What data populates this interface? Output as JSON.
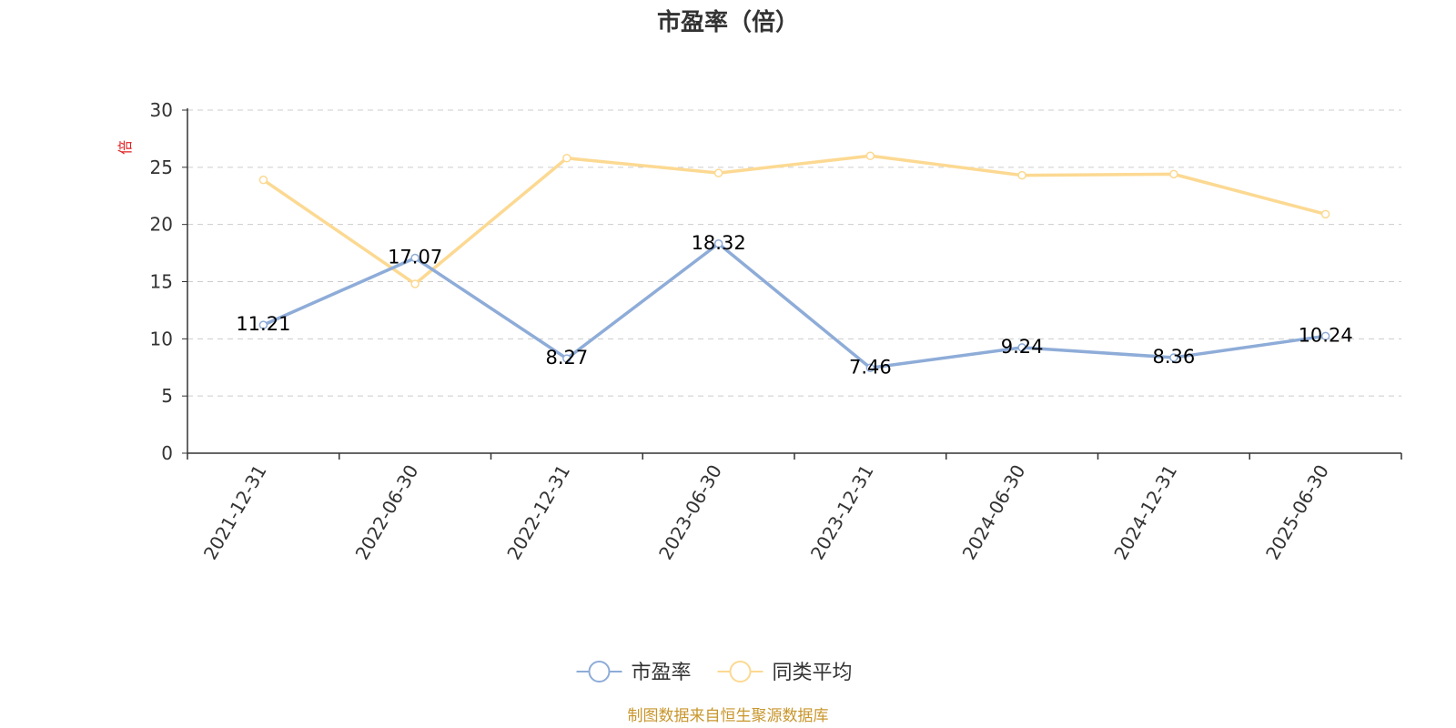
{
  "chart_data": {
    "type": "line",
    "title": "市盈率（倍）",
    "ylabel": "倍",
    "xlabel": "",
    "categories": [
      "2021-12-31",
      "2022-06-30",
      "2022-12-31",
      "2023-06-30",
      "2023-12-31",
      "2024-06-30",
      "2024-12-31",
      "2025-06-30"
    ],
    "y_ticks": [
      "0",
      "5",
      "10",
      "15",
      "20",
      "25",
      "30"
    ],
    "ylim": [
      0,
      30
    ],
    "grid": true,
    "series": [
      {
        "name": "市盈率",
        "values": [
          11.21,
          17.07,
          8.27,
          18.32,
          7.46,
          9.24,
          8.36,
          10.24
        ],
        "labels": [
          "11.21",
          "17.07",
          "8.27",
          "18.32",
          "7.46",
          "9.24",
          "8.36",
          "10.24"
        ],
        "color": "#8eacd8"
      },
      {
        "name": "同类平均",
        "values": [
          23.9,
          14.8,
          25.8,
          24.5,
          26.0,
          24.3,
          24.4,
          20.9
        ],
        "color": "#fcd992"
      }
    ],
    "legend_position": "bottom",
    "source": "制图数据来自恒生聚源数据库"
  },
  "colors": {
    "axis": "#333333",
    "grid": "#cccccc",
    "unit": "#e02020",
    "source": "#c8962c"
  }
}
